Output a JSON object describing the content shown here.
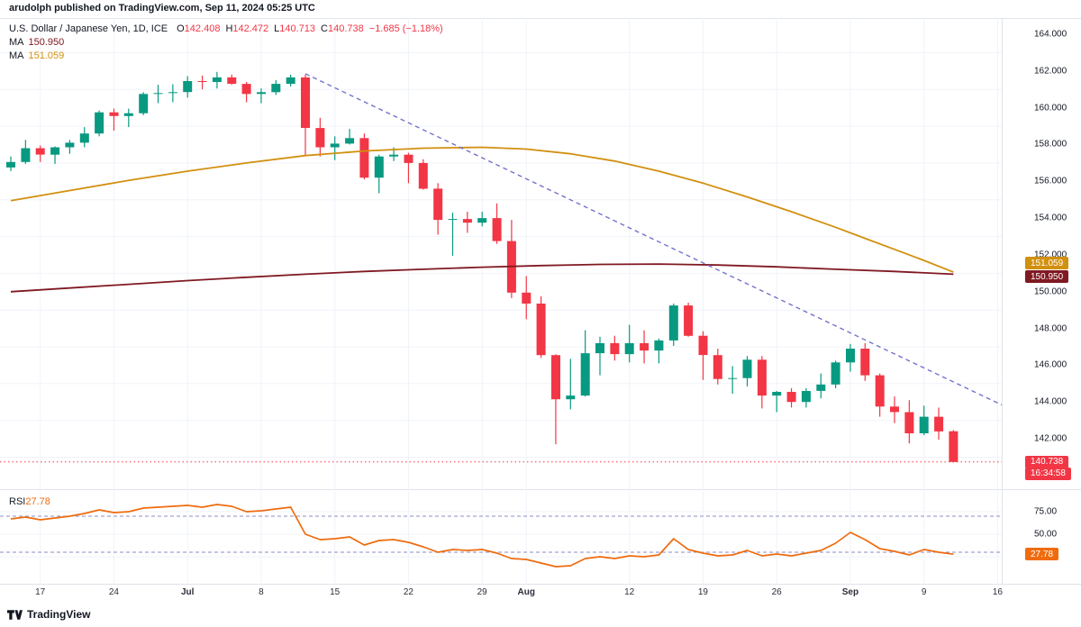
{
  "attribution": "arudolph published on TradingView.com, Sep 11, 2024 05:25 UTC",
  "legend": {
    "symbol": "U.S. Dollar / Japanese Yen, 1D, ICE",
    "ohlc": [
      {
        "label": "O",
        "value": "142.408"
      },
      {
        "label": "H",
        "value": "142.472"
      },
      {
        "label": "L",
        "value": "140.713"
      },
      {
        "label": "C",
        "value": "140.738"
      }
    ],
    "change": "−1.685 (−1.18%)",
    "ma_rows": [
      {
        "label": "MA",
        "value": "150.950",
        "color_key": "ma_red"
      },
      {
        "label": "MA",
        "value": "151.059",
        "color_key": "ma_orange"
      }
    ]
  },
  "rsi_legend": {
    "label": "RSI",
    "value": "27.78"
  },
  "badges": {
    "ma_orange": {
      "text": "151.059"
    },
    "ma_red": {
      "text": "150.950"
    },
    "last_price": {
      "text": "140.738"
    },
    "countdown": {
      "text": "16:34:58"
    },
    "rsi": {
      "text": "27.78"
    }
  },
  "watermark": "TradingView",
  "colors": {
    "up": "#089981",
    "down": "#f23645",
    "ma_red": "#801922",
    "ma_orange": "#d1900f",
    "trendline": "#7472cc",
    "rsi_line": "#ef6b0e",
    "rsi_band": "#8b8bc7",
    "grid": "#f0f3fa",
    "separator": "#e0e3eb",
    "text": "#131722"
  },
  "chart_data": {
    "type": "candlestick",
    "title": "U.S. Dollar / Japanese Yen, 1D, ICE",
    "interval": "1D",
    "ylim": [
      139.26,
      164.88
    ],
    "price_gridline_step": 2,
    "price_axis_labels": [
      {
        "text": "164.000",
        "price": 164
      },
      {
        "text": "162.000",
        "price": 162
      },
      {
        "text": "160.000",
        "price": 160
      },
      {
        "text": "158.000",
        "price": 158
      },
      {
        "text": "156.000",
        "price": 156
      },
      {
        "text": "154.000",
        "price": 154
      },
      {
        "text": "152.000",
        "price": 152
      },
      {
        "text": "150.000",
        "price": 150
      },
      {
        "text": "148.000",
        "price": 148
      },
      {
        "text": "146.000",
        "price": 146
      },
      {
        "text": "144.000",
        "price": 144
      },
      {
        "text": "142.000",
        "price": 142
      }
    ],
    "time_axis_labels": [
      {
        "text": "17",
        "index": 2,
        "month": false
      },
      {
        "text": "24",
        "index": 7,
        "month": false
      },
      {
        "text": "Jul",
        "index": 12,
        "month": true
      },
      {
        "text": "8",
        "index": 17,
        "month": false
      },
      {
        "text": "15",
        "index": 22,
        "month": false
      },
      {
        "text": "22",
        "index": 27,
        "month": false
      },
      {
        "text": "29",
        "index": 32,
        "month": false
      },
      {
        "text": "Aug",
        "index": 35,
        "month": true
      },
      {
        "text": "12",
        "index": 42,
        "month": false
      },
      {
        "text": "19",
        "index": 47,
        "month": false
      },
      {
        "text": "26",
        "index": 52,
        "month": false
      },
      {
        "text": "Sep",
        "index": 57,
        "month": true
      },
      {
        "text": "9",
        "index": 62,
        "month": false
      },
      {
        "text": "16",
        "index": 67,
        "month": false
      }
    ],
    "candles_format": [
      "date",
      "open",
      "high",
      "low",
      "close"
    ],
    "candles": [
      [
        "13 Jun",
        156.75,
        157.35,
        156.55,
        157.05
      ],
      [
        "14 Jun",
        157.05,
        158.25,
        156.95,
        157.8
      ],
      [
        "17 Jun",
        157.8,
        157.95,
        157.05,
        157.45
      ],
      [
        "18 Jun",
        157.45,
        157.9,
        156.95,
        157.85
      ],
      [
        "19 Jun",
        157.85,
        158.25,
        157.5,
        158.1
      ],
      [
        "20 Jun",
        158.1,
        158.95,
        157.85,
        158.6
      ],
      [
        "21 Jun",
        158.6,
        159.85,
        158.45,
        159.75
      ],
      [
        "24 Jun",
        159.75,
        159.95,
        158.75,
        159.55
      ],
      [
        "25 Jun",
        159.55,
        159.95,
        158.95,
        159.7
      ],
      [
        "26 Jun",
        159.7,
        160.85,
        159.6,
        160.75
      ],
      [
        "27 Jun",
        160.75,
        161.25,
        160.25,
        160.8
      ],
      [
        "28 Jun",
        160.8,
        161.28,
        160.3,
        160.85
      ],
      [
        "1 Jul",
        160.85,
        161.72,
        160.55,
        161.45
      ],
      [
        "2 Jul",
        161.45,
        161.75,
        161.0,
        161.4
      ],
      [
        "3 Jul",
        161.4,
        161.95,
        161.05,
        161.65
      ],
      [
        "4 Jul",
        161.65,
        161.8,
        161.25,
        161.3
      ],
      [
        "5 Jul",
        161.3,
        161.4,
        160.3,
        160.75
      ],
      [
        "8 Jul",
        160.75,
        161.05,
        160.25,
        160.85
      ],
      [
        "9 Jul",
        160.85,
        161.5,
        160.7,
        161.3
      ],
      [
        "10 Jul",
        161.3,
        161.8,
        161.15,
        161.65
      ],
      [
        "11 Jul",
        161.65,
        161.8,
        157.4,
        158.9
      ],
      [
        "12 Jul",
        158.9,
        159.45,
        157.35,
        157.85
      ],
      [
        "15 Jul",
        157.85,
        158.45,
        157.15,
        158.05
      ],
      [
        "16 Jul",
        158.05,
        158.85,
        158.0,
        158.35
      ],
      [
        "17 Jul",
        158.35,
        158.6,
        156.1,
        156.2
      ],
      [
        "18 Jul",
        156.2,
        157.45,
        155.35,
        157.35
      ],
      [
        "19 Jul",
        157.35,
        157.85,
        157.1,
        157.45
      ],
      [
        "22 Jul",
        157.45,
        157.55,
        155.9,
        157.0
      ],
      [
        "23 Jul",
        157.0,
        157.2,
        155.55,
        155.6
      ],
      [
        "24 Jul",
        155.6,
        155.9,
        153.1,
        153.9
      ],
      [
        "25 Jul",
        153.9,
        154.3,
        151.95,
        153.95
      ],
      [
        "26 Jul",
        153.95,
        154.35,
        153.2,
        153.75
      ],
      [
        "29 Jul",
        153.75,
        154.35,
        153.55,
        154.0
      ],
      [
        "30 Jul",
        154.0,
        154.8,
        152.6,
        152.75
      ],
      [
        "31 Jul",
        152.75,
        153.9,
        149.65,
        149.95
      ],
      [
        "1 Aug",
        149.95,
        150.85,
        148.5,
        149.35
      ],
      [
        "2 Aug",
        149.35,
        149.75,
        146.4,
        146.55
      ],
      [
        "5 Aug",
        146.55,
        146.6,
        141.7,
        144.15
      ],
      [
        "6 Aug",
        144.15,
        146.35,
        143.6,
        144.35
      ],
      [
        "7 Aug",
        144.35,
        147.9,
        144.3,
        146.65
      ],
      [
        "8 Aug",
        146.65,
        147.55,
        145.45,
        147.2
      ],
      [
        "9 Aug",
        147.2,
        147.6,
        146.25,
        146.6
      ],
      [
        "12 Aug",
        146.6,
        148.2,
        146.15,
        147.2
      ],
      [
        "13 Aug",
        147.2,
        147.9,
        146.1,
        146.8
      ],
      [
        "14 Aug",
        146.8,
        147.45,
        146.1,
        147.35
      ],
      [
        "15 Aug",
        147.35,
        149.35,
        147.05,
        149.25
      ],
      [
        "16 Aug",
        149.25,
        149.4,
        147.55,
        147.6
      ],
      [
        "19 Aug",
        147.6,
        147.85,
        145.2,
        146.55
      ],
      [
        "20 Aug",
        146.55,
        146.9,
        144.95,
        145.25
      ],
      [
        "21 Aug",
        145.25,
        145.95,
        144.45,
        145.3
      ],
      [
        "22 Aug",
        145.3,
        146.5,
        144.85,
        146.3
      ],
      [
        "23 Aug",
        146.3,
        146.5,
        143.65,
        144.35
      ],
      [
        "26 Aug",
        144.35,
        144.6,
        143.45,
        144.55
      ],
      [
        "27 Aug",
        144.55,
        144.75,
        143.7,
        144.0
      ],
      [
        "28 Aug",
        144.0,
        144.75,
        143.7,
        144.6
      ],
      [
        "29 Aug",
        144.6,
        145.55,
        144.2,
        144.95
      ],
      [
        "30 Aug",
        144.95,
        146.25,
        144.75,
        146.15
      ],
      [
        "2 Sep",
        146.15,
        147.15,
        145.65,
        146.9
      ],
      [
        "3 Sep",
        146.9,
        147.2,
        145.15,
        145.45
      ],
      [
        "4 Sep",
        145.45,
        145.55,
        143.2,
        143.75
      ],
      [
        "5 Sep",
        143.75,
        144.3,
        142.85,
        143.45
      ],
      [
        "6 Sep",
        143.45,
        144.1,
        141.75,
        142.3
      ],
      [
        "9 Sep",
        142.3,
        143.8,
        142.2,
        143.2
      ],
      [
        "10 Sep",
        143.2,
        143.7,
        141.95,
        142.4
      ],
      [
        "11 Sep",
        142.408,
        142.472,
        140.713,
        140.738
      ]
    ],
    "ma_lines": [
      {
        "name": "MA orange",
        "last_value": 151.059,
        "color_key": "ma_orange",
        "points": [
          [
            0,
            154.95
          ],
          [
            4,
            155.5
          ],
          [
            8,
            156.05
          ],
          [
            12,
            156.55
          ],
          [
            16,
            157.0
          ],
          [
            20,
            157.4
          ],
          [
            24,
            157.65
          ],
          [
            28,
            157.8
          ],
          [
            32,
            157.85
          ],
          [
            35,
            157.75
          ],
          [
            38,
            157.5
          ],
          [
            41,
            157.1
          ],
          [
            44,
            156.55
          ],
          [
            47,
            155.9
          ],
          [
            50,
            155.15
          ],
          [
            53,
            154.35
          ],
          [
            56,
            153.5
          ],
          [
            58,
            152.9
          ],
          [
            60,
            152.3
          ],
          [
            62,
            151.7
          ],
          [
            64,
            151.06
          ]
        ]
      },
      {
        "name": "MA dark red",
        "last_value": 150.95,
        "color_key": "ma_red",
        "points": [
          [
            0,
            150.0
          ],
          [
            4,
            150.2
          ],
          [
            8,
            150.4
          ],
          [
            12,
            150.6
          ],
          [
            16,
            150.78
          ],
          [
            20,
            150.95
          ],
          [
            24,
            151.1
          ],
          [
            28,
            151.22
          ],
          [
            32,
            151.33
          ],
          [
            36,
            151.42
          ],
          [
            40,
            151.48
          ],
          [
            44,
            151.5
          ],
          [
            48,
            151.45
          ],
          [
            52,
            151.35
          ],
          [
            56,
            151.22
          ],
          [
            60,
            151.1
          ],
          [
            64,
            150.95
          ]
        ]
      }
    ],
    "trendline": {
      "style": "dashed",
      "from": [
        20,
        161.85
      ],
      "to": [
        69.5,
        143.0
      ]
    },
    "last_price": 140.738,
    "rsi": {
      "name": "RSI",
      "last_value": 27.78,
      "upper_band": 70,
      "lower_band": 30,
      "ylim": [
        -5,
        97
      ],
      "axis_labels": [
        {
          "text": "75.00",
          "value": 75
        },
        {
          "text": "50.00",
          "value": 50
        }
      ],
      "values": [
        67,
        69,
        66,
        68,
        70,
        73,
        77,
        74,
        75,
        79,
        80,
        81,
        82,
        80,
        83,
        81,
        75,
        76,
        78,
        80,
        50,
        44,
        45,
        47,
        38,
        43,
        44,
        41,
        36,
        30,
        33,
        32,
        33,
        29,
        23,
        22,
        18,
        14,
        15,
        23,
        25,
        23,
        26,
        25,
        27,
        45,
        33,
        29,
        26,
        27,
        32,
        26,
        28,
        26,
        29,
        32,
        40,
        52,
        44,
        34,
        31,
        27,
        33,
        30,
        27.78
      ]
    }
  }
}
